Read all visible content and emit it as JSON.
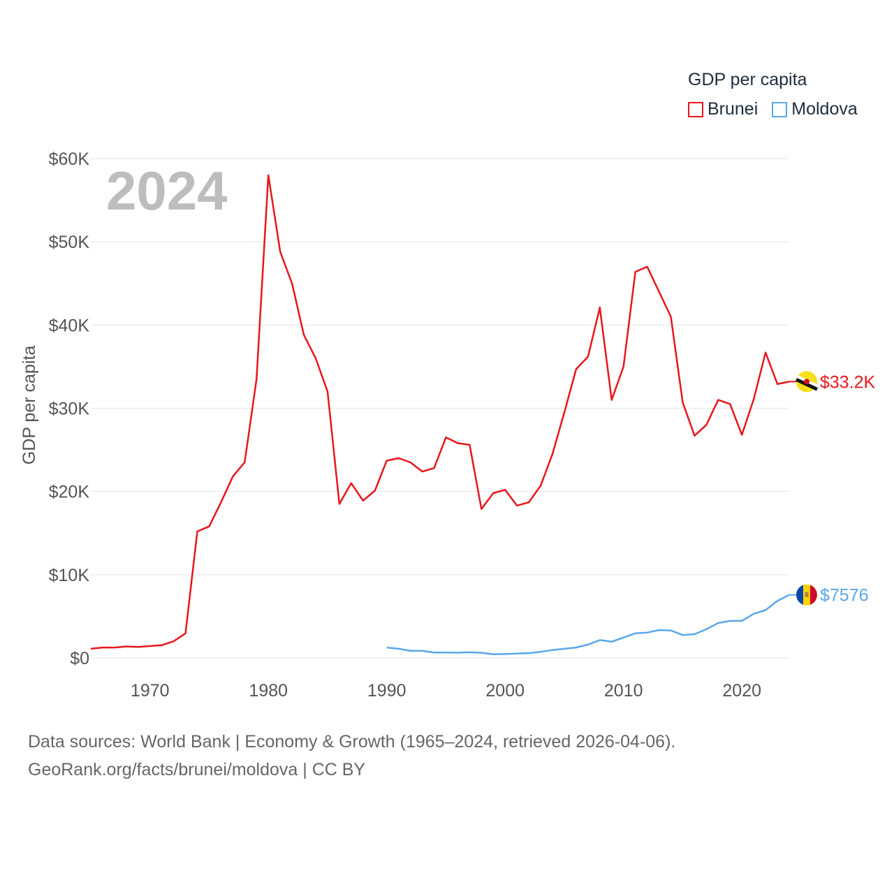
{
  "legend": {
    "title": "GDP per capita",
    "items": [
      {
        "label": "Brunei",
        "color": "#e8161b"
      },
      {
        "label": "Moldova",
        "color": "#5aa7e8"
      }
    ]
  },
  "year_label": "2024",
  "footer": {
    "line1": "Data sources: World Bank | Economy & Growth (1965–2024, retrieved 2026-04-06).",
    "line2": "GeoRank.org/facts/brunei/moldova | CC BY"
  },
  "chart_data": {
    "type": "line",
    "title": "",
    "xlabel": "",
    "ylabel": "GDP per capita",
    "xlim": [
      1965,
      2024
    ],
    "ylim": [
      0,
      60000
    ],
    "y_ticks": [
      {
        "value": 0,
        "label": "$0"
      },
      {
        "value": 10000,
        "label": "$10K"
      },
      {
        "value": 20000,
        "label": "$20K"
      },
      {
        "value": 30000,
        "label": "$30K"
      },
      {
        "value": 40000,
        "label": "$40K"
      },
      {
        "value": 50000,
        "label": "$50K"
      },
      {
        "value": 60000,
        "label": "$60K"
      }
    ],
    "x_ticks": [
      {
        "value": 1970,
        "label": "1970"
      },
      {
        "value": 1980,
        "label": "1980"
      },
      {
        "value": 1990,
        "label": "1990"
      },
      {
        "value": 2000,
        "label": "2000"
      },
      {
        "value": 2010,
        "label": "2010"
      },
      {
        "value": 2020,
        "label": "2020"
      }
    ],
    "grid": true,
    "series": [
      {
        "name": "Brunei",
        "color": "#e8161b",
        "end_label": "$33.2K",
        "x": [
          1965,
          1966,
          1967,
          1968,
          1969,
          1970,
          1971,
          1972,
          1973,
          1974,
          1975,
          1976,
          1977,
          1978,
          1979,
          1980,
          1981,
          1982,
          1983,
          1984,
          1985,
          1986,
          1987,
          1988,
          1989,
          1990,
          1991,
          1992,
          1993,
          1994,
          1995,
          1996,
          1997,
          1998,
          1999,
          2000,
          2001,
          2002,
          2003,
          2004,
          2005,
          2006,
          2007,
          2008,
          2009,
          2010,
          2011,
          2012,
          2013,
          2014,
          2015,
          2016,
          2017,
          2018,
          2019,
          2020,
          2021,
          2022,
          2023,
          2024
        ],
        "values": [
          1100,
          1250,
          1250,
          1380,
          1330,
          1430,
          1530,
          2000,
          2950,
          15200,
          15800,
          18700,
          21800,
          23500,
          33500,
          58000,
          48800,
          45000,
          38800,
          36000,
          32000,
          18500,
          21000,
          18900,
          20100,
          23700,
          24000,
          23500,
          22400,
          22800,
          26500,
          25800,
          25600,
          17900,
          19800,
          20200,
          18300,
          18700,
          20700,
          24500,
          29500,
          34700,
          36200,
          42100,
          31000,
          35000,
          46400,
          47000,
          44000,
          41000,
          30700,
          26700,
          28000,
          31000,
          30500,
          26800,
          31100,
          36700,
          32900,
          33200
        ]
      },
      {
        "name": "Moldova",
        "color": "#5aa7e8",
        "end_label": "$7576",
        "x": [
          1990,
          1991,
          1992,
          1993,
          1994,
          1995,
          1996,
          1997,
          1998,
          1999,
          2000,
          2001,
          2002,
          2003,
          2004,
          2005,
          2006,
          2007,
          2008,
          2009,
          2010,
          2011,
          2012,
          2013,
          2014,
          2015,
          2016,
          2017,
          2018,
          2019,
          2020,
          2021,
          2022,
          2023,
          2024
        ],
        "values": [
          1250,
          1100,
          850,
          850,
          650,
          650,
          630,
          680,
          620,
          440,
          470,
          520,
          580,
          730,
          950,
          1100,
          1250,
          1600,
          2150,
          1950,
          2450,
          2950,
          3050,
          3350,
          3300,
          2750,
          2850,
          3450,
          4200,
          4450,
          4450,
          5300,
          5750,
          6850,
          7576
        ]
      }
    ]
  }
}
